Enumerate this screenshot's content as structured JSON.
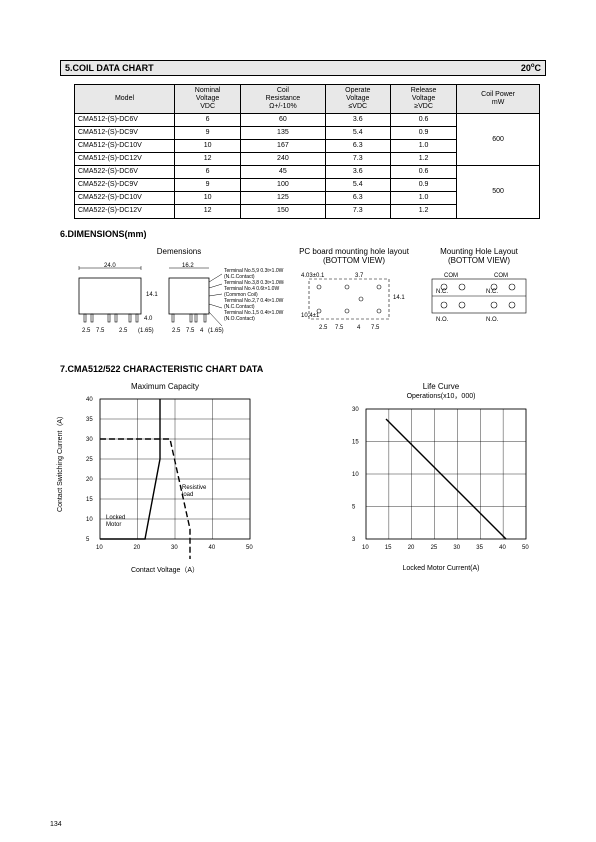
{
  "page_number": "134",
  "section5": {
    "heading": "5.COIL DATA CHART",
    "temp": "20",
    "temp_unit": "℃",
    "columns": [
      "Model",
      "Nominal\nVoltage\nVDC",
      "Coil\nResistance\nΩ+/-10%",
      "Operate\nVoltage\n≤VDC",
      "Release\nVoltage\n≥VDC",
      "Coil Power\nmW"
    ],
    "rows": [
      [
        "CMA512-(S)-DC6V",
        "6",
        "60",
        "3.6",
        "0.6"
      ],
      [
        "CMA512-(S)-DC9V",
        "9",
        "135",
        "5.4",
        "0.9"
      ],
      [
        "CMA512-(S)-DC10V",
        "10",
        "167",
        "6.3",
        "1.0"
      ],
      [
        "CMA512-(S)-DC12V",
        "12",
        "240",
        "7.3",
        "1.2"
      ],
      [
        "CMA522-(S)-DC6V",
        "6",
        "45",
        "3.6",
        "0.6"
      ],
      [
        "CMA522-(S)-DC9V",
        "9",
        "100",
        "5.4",
        "0.9"
      ],
      [
        "CMA522-(S)-DC10V",
        "10",
        "125",
        "6.3",
        "1.0"
      ],
      [
        "CMA522-(S)-DC12V",
        "12",
        "150",
        "7.3",
        "1.2"
      ]
    ],
    "power_group1": "600",
    "power_group2": "500"
  },
  "section6": {
    "heading": "6.DIMENSIONS(mm)",
    "dim_label": "Demensions",
    "pcb_label": "PC board mounting hole layout\n(BOTTOM VIEW)",
    "mount_label": "Mounting Hole Layout\n(BOTTOM VIEW)",
    "dim_values": {
      "w": "24.0",
      "h": "14.1",
      "d": "16.2",
      "pin_left": [
        "2.5",
        "7.5",
        "2.5"
      ],
      "pin_h": "4.0",
      "ext": "(1.65)"
    },
    "terminal_notes": [
      "Terminal No.5,9 0.3t×1.0W",
      "(N.C.Contact)",
      "Terminal No.3,8 0.3t×1.0W(Coil)",
      "Terminal No.4 0.6t×1.0W",
      "(Common Coil)",
      "Terminal No.2,7 0.4t×1.0W",
      "(N.C.Contact)",
      "Terminal No.1,5 0.4t×1.0W",
      "(N.O.Contact)"
    ],
    "pcb_values": [
      "4.03±0.1",
      "3.7",
      "2.5",
      "7.5",
      "4",
      "7.5",
      "14.1",
      "10.4±1"
    ],
    "mount_text": [
      "COM",
      "COM",
      "N.C.",
      "N.C.",
      "N.O.",
      "N.O."
    ]
  },
  "section7": {
    "heading": "7.CMA512/522  CHARACTERISTIC CHART DATA",
    "chart1": {
      "title": "Maximum Capacity",
      "ylabel": "Contact Switching Current（A）",
      "xlabel": "Contact Voltage（A）",
      "y_ticks": [
        "40",
        "35",
        "30",
        "25",
        "20",
        "15",
        "10",
        "5"
      ],
      "x_ticks": [
        "10",
        "20",
        "30",
        "40",
        "50"
      ],
      "series": [
        {
          "label": "Locked\nMotor",
          "points": [
            [
              0,
              140
            ],
            [
              45,
              140
            ],
            [
              60,
              60
            ],
            [
              60,
              0
            ]
          ],
          "dash": "0",
          "color": "#000"
        },
        {
          "label": "Resistive\nload",
          "points": [
            [
              0,
              40
            ],
            [
              70,
              40
            ],
            [
              90,
              130
            ],
            [
              90,
              160
            ]
          ],
          "dash": "6 3",
          "color": "#000"
        }
      ]
    },
    "chart2": {
      "title": "Life Curve",
      "subtitle": "Operations(x10，000)",
      "xlabel": "Locked Motor Current(A)",
      "y_ticks": [
        "30",
        "15",
        "10",
        "5",
        "3"
      ],
      "x_ticks": [
        "10",
        "15",
        "20",
        "25",
        "30",
        "35",
        "40",
        "50"
      ],
      "series": [
        {
          "points": [
            [
              20,
              10
            ],
            [
              140,
              130
            ]
          ],
          "dash": "0",
          "color": "#000"
        }
      ]
    }
  }
}
